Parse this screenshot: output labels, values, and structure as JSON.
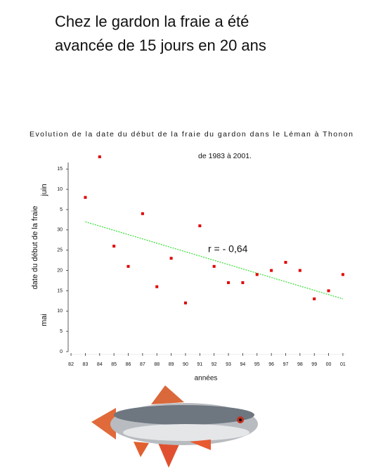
{
  "heading": [
    "Chez le gardon la fraie a été",
    "avancée de 15 jours en 20 ans"
  ],
  "chart_data": {
    "type": "scatter",
    "title": "Evolution de la date du début de la fraie du gardon dans le Léman à Thonon",
    "subtitle": "de 1983 à 2001.",
    "y_label": "date du début de la fraie",
    "y_month_labels": [
      "mai",
      "juin"
    ],
    "x_label": "années",
    "annotation": "r = - 0,64",
    "x": [
      1983,
      1984,
      1985,
      1986,
      1987,
      1988,
      1989,
      1990,
      1991,
      1992,
      1993,
      1994,
      1995,
      1996,
      1997,
      1998,
      1999,
      2000,
      2001
    ],
    "values": [
      38,
      48,
      26,
      21,
      34,
      16,
      23,
      12,
      31,
      21,
      17,
      17,
      19,
      20,
      22,
      20,
      13,
      15,
      19
    ],
    "color": "#e00000",
    "trend": {
      "x": [
        1983,
        2001
      ],
      "values": [
        32,
        13
      ],
      "color": "#33dd33"
    },
    "xlim": [
      1981.8,
      2001.2
    ],
    "xticks": [
      {
        "value": 1982,
        "label": "82"
      },
      {
        "value": 1983,
        "label": "83"
      },
      {
        "value": 1984,
        "label": "84"
      },
      {
        "value": 1985,
        "label": "85"
      },
      {
        "value": 1986,
        "label": "86"
      },
      {
        "value": 1987,
        "label": "87"
      },
      {
        "value": 1988,
        "label": "88"
      },
      {
        "value": 1989,
        "label": "89"
      },
      {
        "value": 1990,
        "label": "90"
      },
      {
        "value": 1991,
        "label": "91"
      },
      {
        "value": 1992,
        "label": "92"
      },
      {
        "value": 1993,
        "label": "93"
      },
      {
        "value": 1994,
        "label": "94"
      },
      {
        "value": 1995,
        "label": "95"
      },
      {
        "value": 1996,
        "label": "96"
      },
      {
        "value": 1997,
        "label": "97"
      },
      {
        "value": 1998,
        "label": "98"
      },
      {
        "value": 1999,
        "label": "99"
      },
      {
        "value": 2000,
        "label": "00"
      },
      {
        "value": 2001,
        "label": "01"
      }
    ],
    "ylim": [
      0,
      48
    ],
    "yticks": [
      0,
      5,
      10,
      15,
      20,
      25,
      30,
      {
        "value": 35,
        "label": "5"
      },
      {
        "value": 40,
        "label": "10"
      },
      {
        "value": 45,
        "label": "15"
      }
    ]
  }
}
